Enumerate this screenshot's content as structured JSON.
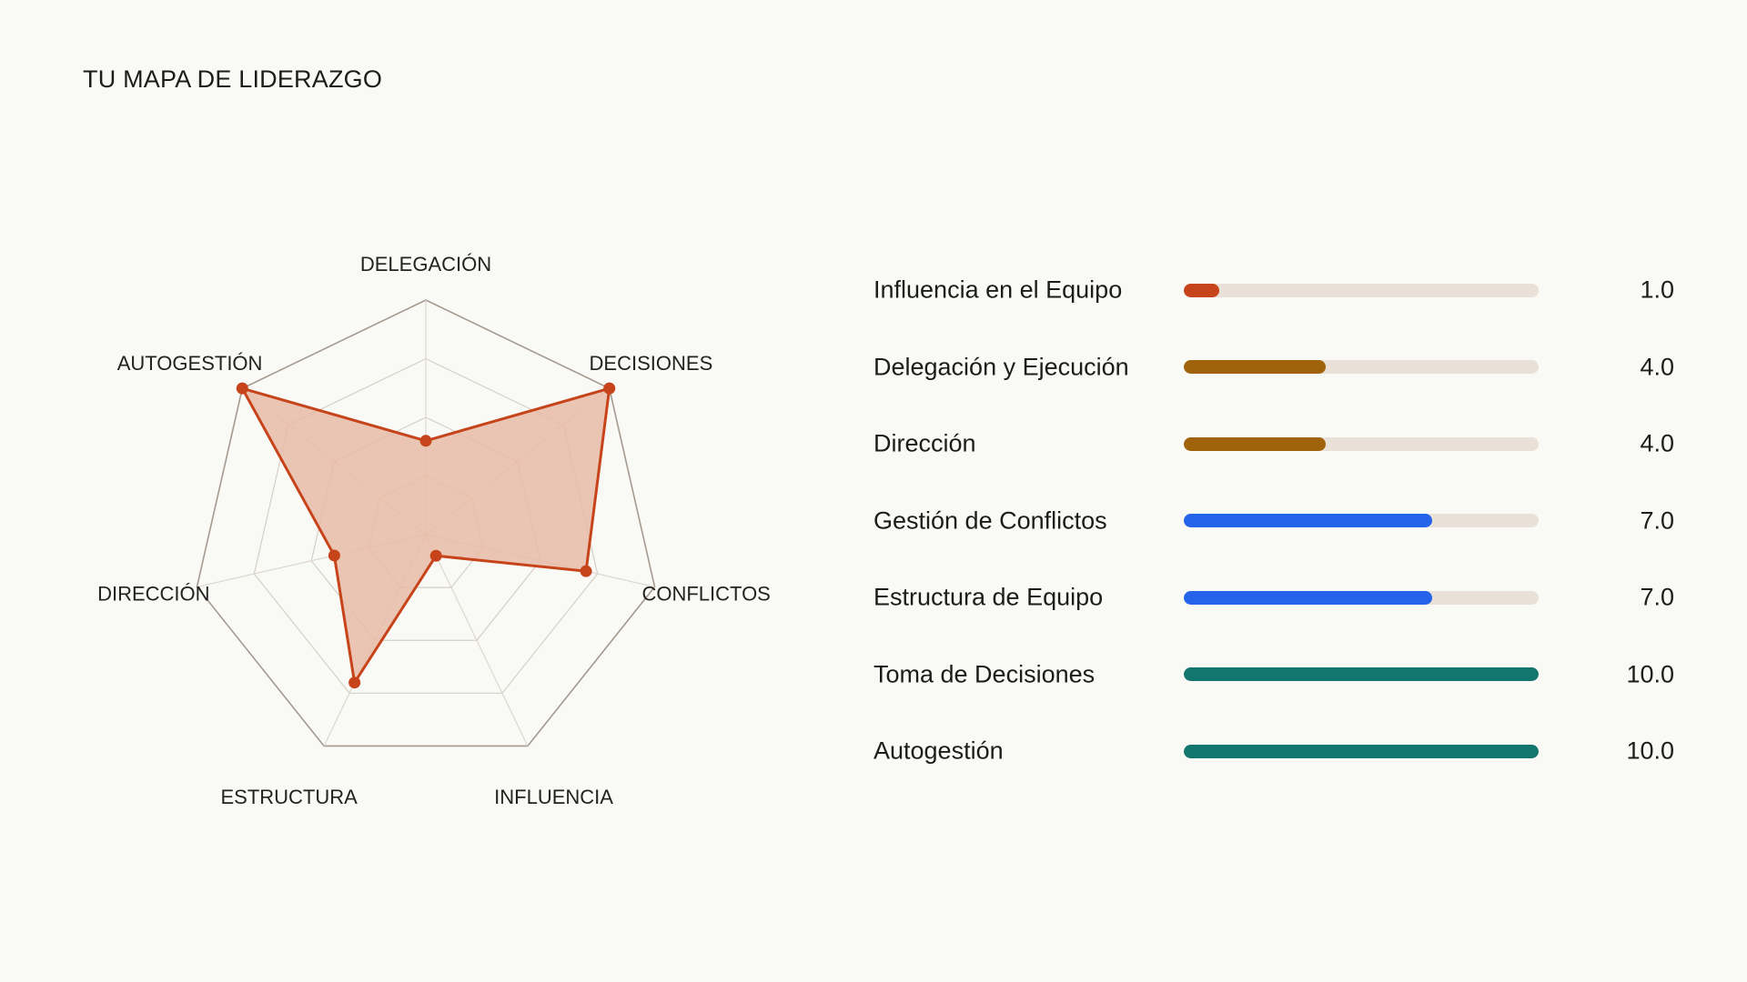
{
  "title": "TU MAPA DE LIDERAZGO",
  "colors": {
    "accent": "#c7431a",
    "accent_fill": "#e9bca7",
    "low": "#c7431a",
    "mid": "#a0620b",
    "good": "#2563eb",
    "top": "#13766e",
    "track": "#e9e1d7"
  },
  "chart_data": [
    {
      "type": "radar",
      "axes": [
        "DELEGACIÓN",
        "DECISIONES",
        "CONFLICTOS",
        "INFLUENCIA",
        "ESTRUCTURA",
        "DIRECCIÓN",
        "AUTOGESTIÓN"
      ],
      "values": [
        4,
        10,
        7,
        1,
        7,
        4,
        10
      ],
      "range": [
        0,
        10
      ],
      "grid_levels": 4,
      "grid": true
    },
    {
      "type": "bar",
      "orientation": "horizontal",
      "categories": [
        "Influencia en el Equipo",
        "Delegación y Ejecución",
        "Dirección",
        "Gestión de Conflictos",
        "Estructura de Equipo",
        "Toma de Decisiones",
        "Autogestión"
      ],
      "values": [
        1.0,
        4.0,
        4.0,
        7.0,
        7.0,
        10.0,
        10.0
      ],
      "value_labels": [
        "1.0",
        "4.0",
        "4.0",
        "7.0",
        "7.0",
        "10.0",
        "10.0"
      ],
      "bar_colors": [
        "#c7431a",
        "#a0620b",
        "#a0620b",
        "#2563eb",
        "#2563eb",
        "#13766e",
        "#13766e"
      ],
      "range": [
        0,
        10
      ]
    }
  ]
}
